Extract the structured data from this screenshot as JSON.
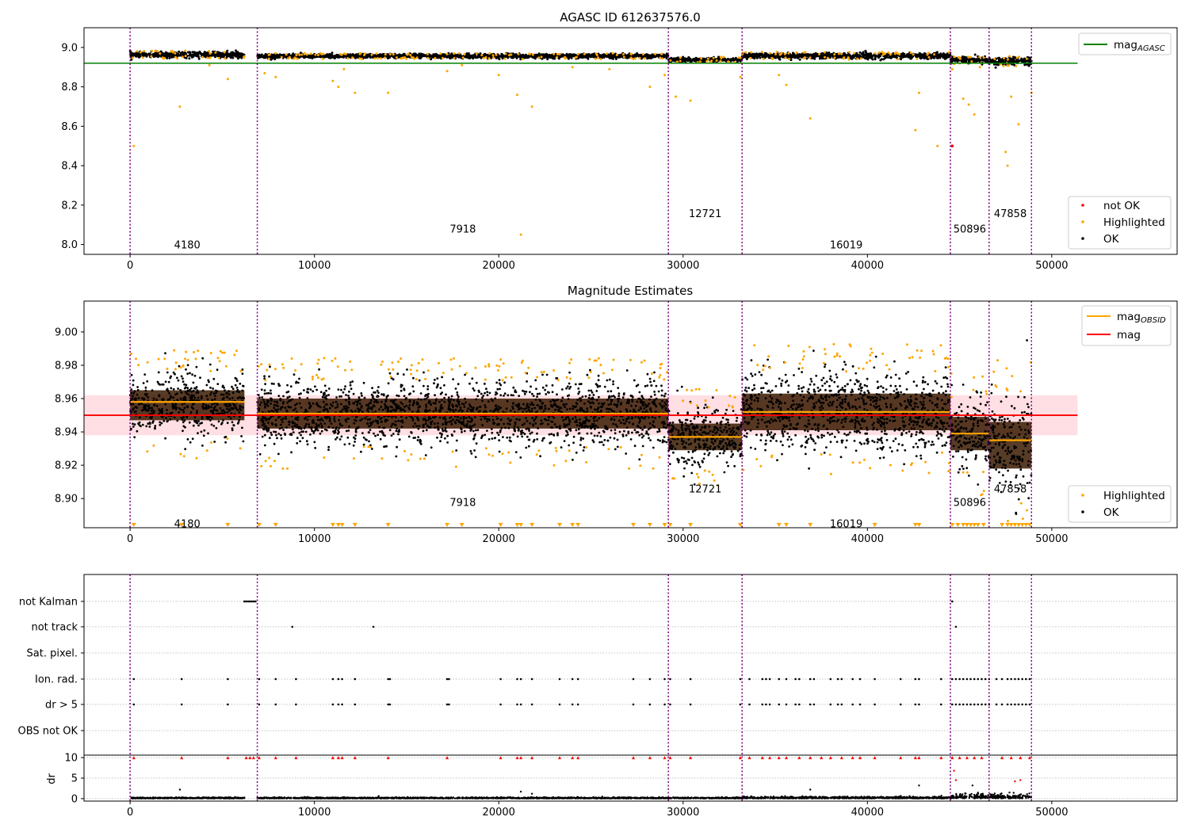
{
  "colors": {
    "ok": "#000000",
    "highlighted": "#ffa500",
    "not_ok": "#ff0000",
    "agasc_line": "#008000",
    "obsid_line": "#ffa500",
    "mag_line": "#ff0000",
    "band": "#ffc0c8",
    "obs_boundary": "#800080",
    "flag_grid": "#b0b0b0"
  },
  "chart_data": [
    {
      "type": "scatter",
      "title": "AGASC ID 612637576.0",
      "xlim": [
        -2500,
        56800
      ],
      "ylim": [
        7.95,
        9.1
      ],
      "xticks": [
        0,
        10000,
        20000,
        30000,
        40000,
        50000
      ],
      "yticks": [
        8.0,
        8.2,
        8.4,
        8.6,
        8.8,
        9.0
      ],
      "ytick_labels": [
        "8.0",
        "8.2",
        "8.4",
        "8.6",
        "8.8",
        "9.0"
      ],
      "grid": false,
      "reference_lines": [
        {
          "name": "mag",
          "subscript": "AGASC",
          "y": 8.92,
          "x_range": [
            -2500,
            51400
          ],
          "color": "#008000"
        }
      ],
      "line_legend_position": "top-right",
      "point_legend": [
        "not OK",
        "Highlighted",
        "OK"
      ],
      "point_legend_position": "bottom-right",
      "observations": [
        {
          "obsid": "4180",
          "x_range": [
            0,
            6200
          ],
          "center": 8.963,
          "spread": 0.012,
          "label_y": 8.0
        },
        {
          "obsid": "7918",
          "x_range": [
            6900,
            29200
          ],
          "center": 8.956,
          "spread": 0.009,
          "label_y": 8.08
        },
        {
          "obsid": "12721",
          "x_range": [
            29200,
            33200
          ],
          "center": 8.938,
          "spread": 0.008,
          "label_y": 8.16
        },
        {
          "obsid": "16019",
          "x_range": [
            33200,
            44500
          ],
          "center": 8.957,
          "spread": 0.012,
          "label_y": 8.0
        },
        {
          "obsid": "50896",
          "x_range": [
            44500,
            46600
          ],
          "center": 8.936,
          "spread": 0.012,
          "label_y": 8.08
        },
        {
          "obsid": "47858",
          "x_range": [
            46600,
            48900
          ],
          "center": 8.93,
          "spread": 0.017,
          "label_y": 8.16
        }
      ],
      "highlighted_outliers": [
        [
          200,
          8.5
        ],
        [
          2700,
          8.7
        ],
        [
          4300,
          8.91
        ],
        [
          5300,
          8.84
        ],
        [
          7300,
          8.87
        ],
        [
          7900,
          8.85
        ],
        [
          11000,
          8.83
        ],
        [
          11300,
          8.8
        ],
        [
          11600,
          8.89
        ],
        [
          12200,
          8.77
        ],
        [
          14000,
          8.77
        ],
        [
          17200,
          8.88
        ],
        [
          18000,
          8.91
        ],
        [
          20000,
          8.86
        ],
        [
          21000,
          8.76
        ],
        [
          21800,
          8.7
        ],
        [
          21200,
          8.05
        ],
        [
          24000,
          8.9
        ],
        [
          26000,
          8.89
        ],
        [
          28200,
          8.8
        ],
        [
          29000,
          8.86
        ],
        [
          29600,
          8.75
        ],
        [
          30400,
          8.73
        ],
        [
          33100,
          8.85
        ],
        [
          35200,
          8.86
        ],
        [
          35600,
          8.81
        ],
        [
          36900,
          8.64
        ],
        [
          42600,
          8.58
        ],
        [
          42800,
          8.77
        ],
        [
          43800,
          8.5
        ],
        [
          44600,
          8.89
        ],
        [
          45200,
          8.74
        ],
        [
          45500,
          8.71
        ],
        [
          45800,
          8.66
        ],
        [
          46100,
          8.9
        ],
        [
          47500,
          8.47
        ],
        [
          47600,
          8.4
        ],
        [
          47800,
          8.75
        ],
        [
          48200,
          8.61
        ],
        [
          48900,
          8.77
        ]
      ],
      "not_ok_points": [
        [
          44600,
          8.5
        ]
      ]
    },
    {
      "type": "scatter",
      "title": "Magnitude Estimates",
      "xlim": [
        -2500,
        56800
      ],
      "ylim": [
        8.8825,
        9.0185
      ],
      "xticks": [
        0,
        10000,
        20000,
        30000,
        40000,
        50000
      ],
      "yticks": [
        8.9,
        8.92,
        8.94,
        8.96,
        8.98,
        9.0
      ],
      "ytick_labels": [
        "8.90",
        "8.92",
        "8.94",
        "8.96",
        "8.98",
        "9.00"
      ],
      "grid": false,
      "band": {
        "y_range": [
          8.938,
          8.962
        ],
        "x_range": [
          -2500,
          51400
        ]
      },
      "reference_lines": [
        {
          "name": "mag",
          "subscript": "OBSID",
          "color": "#ffa500"
        },
        {
          "name": "mag",
          "subscript": "",
          "y": 8.95,
          "x_range": [
            -2500,
            51400
          ],
          "color": "#ff0000"
        }
      ],
      "line_legend_position": "top-right",
      "point_legend": [
        "Highlighted",
        "OK"
      ],
      "point_legend_position": "bottom-right",
      "observations": [
        {
          "obsid": "4180",
          "x_range": [
            0,
            6200
          ],
          "mag_obsid": 8.958,
          "center": 8.956,
          "spread": 0.009,
          "label_y": 8.885
        },
        {
          "obsid": "7918",
          "x_range": [
            6900,
            29200
          ],
          "mag_obsid": 8.951,
          "center": 8.951,
          "spread": 0.009,
          "label_y": 8.898
        },
        {
          "obsid": "12721",
          "x_range": [
            29200,
            33200
          ],
          "mag_obsid": 8.937,
          "center": 8.937,
          "spread": 0.008,
          "label_y": 8.906
        },
        {
          "obsid": "16019",
          "x_range": [
            33200,
            44500
          ],
          "mag_obsid": 8.952,
          "center": 8.952,
          "spread": 0.011,
          "label_y": 8.885
        },
        {
          "obsid": "50896",
          "x_range": [
            44500,
            46600
          ],
          "mag_obsid": 8.939,
          "center": 8.939,
          "spread": 0.01,
          "label_y": 8.898
        },
        {
          "obsid": "47858",
          "x_range": [
            46600,
            48900
          ],
          "mag_obsid": 8.935,
          "center": 8.932,
          "spread": 0.014,
          "label_y": 8.906
        }
      ],
      "lower_limit_markers_x": [
        200,
        2800,
        5300,
        7000,
        7900,
        11000,
        11300,
        11500,
        12200,
        14000,
        17200,
        18000,
        20100,
        21000,
        21200,
        21800,
        23300,
        24000,
        24300,
        27300,
        28200,
        29000,
        29300,
        30400,
        33100,
        35200,
        35600,
        36900,
        40400,
        42600,
        42800,
        44600,
        44900,
        45200,
        45400,
        45600,
        45800,
        46000,
        46300,
        47300,
        47600,
        47800,
        48000,
        48200,
        48400,
        48600,
        48800
      ]
    },
    {
      "type": "scatter",
      "title": "",
      "xlim": [
        -2500,
        56800
      ],
      "xticks": [
        0,
        10000,
        20000,
        30000,
        40000,
        50000
      ],
      "flag_rows": [
        "not Kalman",
        "not track",
        "Sat. pixel.",
        "Ion. rad.",
        "dr > 5",
        "OBS not OK"
      ],
      "flag_points": {
        "not Kalman": [
          6200,
          6300,
          6400,
          6500,
          6600,
          6700,
          6800,
          44600
        ],
        "not track": [
          8800,
          13200,
          44800
        ],
        "Sat. pixel.": [],
        "Ion. rad.": [
          200,
          2800,
          5300,
          7000,
          7900,
          9000,
          11000,
          11300,
          11500,
          12200,
          14000,
          14100,
          17200,
          17300,
          20100,
          21000,
          21200,
          21800,
          23300,
          24000,
          24300,
          27300,
          28200,
          29000,
          29300,
          30400,
          33100,
          33600,
          34300,
          34500,
          34700,
          35200,
          35600,
          36100,
          36300,
          36900,
          37100,
          38000,
          38400,
          38600,
          39200,
          39600,
          40400,
          41800,
          42600,
          42800,
          44000,
          44600,
          44800,
          45000,
          45200,
          45400,
          45600,
          45800,
          46000,
          46200,
          46400,
          46600,
          47000,
          47300,
          47600,
          47800,
          48000,
          48200,
          48400,
          48600,
          48800
        ],
        "dr > 5": [
          200,
          2800,
          5300,
          7000,
          7900,
          9000,
          11000,
          11300,
          11500,
          12200,
          14000,
          14100,
          17200,
          17300,
          20100,
          21000,
          21200,
          21800,
          23300,
          24000,
          24300,
          27300,
          28200,
          29000,
          29300,
          30400,
          33100,
          33600,
          34300,
          34500,
          34700,
          35200,
          35600,
          36100,
          36300,
          36900,
          37100,
          38000,
          38400,
          38600,
          39200,
          39600,
          40400,
          41800,
          42600,
          42800,
          44000,
          44600,
          44800,
          45000,
          45200,
          45400,
          45600,
          45800,
          46000,
          46200,
          46400,
          46600,
          47000,
          47300,
          47600,
          47800,
          48000,
          48200,
          48400,
          48600,
          48800
        ],
        "OBS not OK": []
      },
      "dr_ylabel": "dr",
      "dr_ylim": [
        -0.6,
        10.6
      ],
      "dr_yticks": [
        0,
        5,
        10
      ],
      "dr_clipped_markers_x": [
        200,
        2800,
        5300,
        6300,
        6500,
        6700,
        7000,
        7900,
        9000,
        11000,
        11300,
        11500,
        12200,
        14000,
        17200,
        20100,
        21000,
        21200,
        21800,
        23300,
        24000,
        24300,
        27300,
        28200,
        29000,
        29300,
        30400,
        33100,
        33600,
        34300,
        34700,
        35200,
        35600,
        36300,
        36900,
        37500,
        38000,
        38600,
        39200,
        39600,
        40400,
        41800,
        42600,
        42800,
        44000,
        44600,
        45000,
        45400,
        45800,
        46200,
        47300,
        47800,
        48300,
        48800
      ],
      "dr_outliers": [
        [
          2700,
          2.2
        ],
        [
          21200,
          1.7
        ],
        [
          21800,
          1.2
        ],
        [
          36900,
          2.2
        ],
        [
          42800,
          3.2
        ],
        [
          44700,
          6.8
        ],
        [
          44800,
          4.5
        ],
        [
          45700,
          3.2
        ],
        [
          48000,
          4.2
        ],
        [
          48300,
          4.5
        ]
      ]
    }
  ]
}
